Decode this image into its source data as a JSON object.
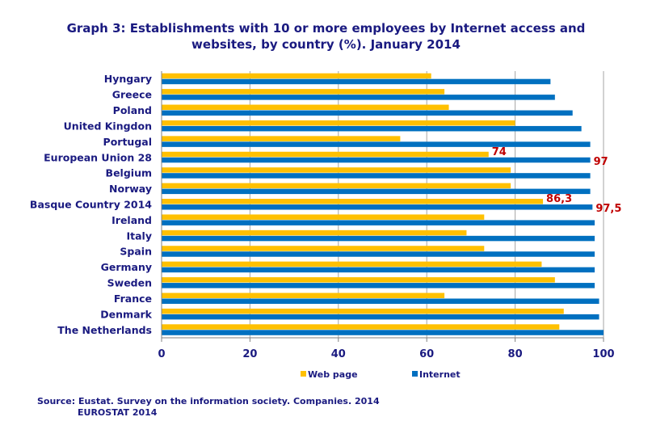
{
  "chart_data": {
    "type": "bar",
    "orientation": "horizontal",
    "title": "Graph 3: Establishments with 10 or more employees by Internet access and websites, by country (%). January 2014",
    "categories": [
      "Hyngary",
      "Greece",
      "Poland",
      "United Kingdon",
      "Portugal",
      "European Union 28",
      "Belgium",
      "Norway",
      "Basque Country 2014",
      "Ireland",
      "Italy",
      "Spain",
      "Germany",
      "Sweden",
      "France",
      "Denmark",
      "The Netherlands"
    ],
    "series": [
      {
        "name": "Web page",
        "color": "#FFC000",
        "values": [
          61,
          64,
          65,
          80,
          54,
          74,
          79,
          79,
          86.3,
          73,
          69,
          73,
          86,
          89,
          64,
          91,
          90
        ]
      },
      {
        "name": "Internet",
        "color": "#0070C0",
        "values": [
          88,
          89,
          93,
          95,
          97,
          97,
          97,
          97,
          97.5,
          98,
          98,
          98,
          98,
          98,
          99,
          99,
          100
        ]
      }
    ],
    "data_labels": [
      {
        "category": "European Union 28",
        "series": "Web page",
        "text": "74"
      },
      {
        "category": "European Union 28",
        "series": "Internet",
        "text": "97"
      },
      {
        "category": "Basque Country 2014",
        "series": "Web page",
        "text": "86,3"
      },
      {
        "category": "Basque Country 2014",
        "series": "Internet",
        "text": "97,5"
      }
    ],
    "xlim": [
      0,
      100
    ],
    "xticks": [
      "0",
      "20",
      "40",
      "60",
      "80",
      "100"
    ],
    "grid": true,
    "legend_placement": "bottom",
    "label_color": "#C00000",
    "text_color": "#1a1a80"
  },
  "source": {
    "line1": "Source: Eustat. Survey on the information society. Companies. 2014",
    "line2": "EUROSTAT 2014"
  }
}
